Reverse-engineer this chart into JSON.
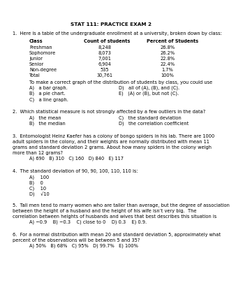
{
  "title": "STAT 111: PRACTICE EXAM 2",
  "background_color": "#ffffff",
  "text_color": "#000000",
  "q1_intro": "1.  Here is a table of the undergraduate enrollment at a university, broken down by class:",
  "table_headers": [
    "Class",
    "Count of students",
    "Percent of Students"
  ],
  "table_rows": [
    [
      "Freshman",
      "8,248",
      "26.8%"
    ],
    [
      "Sophomore",
      "8,073",
      "26.2%"
    ],
    [
      "Junior",
      "7,001",
      "22.8%"
    ],
    [
      "Senior",
      "6,904",
      "22.4%"
    ],
    [
      "Non-degree",
      "535",
      "1.7%"
    ],
    [
      "Total",
      "30,761",
      "100%"
    ]
  ],
  "q1_followup": "To make a correct graph of the distribution of students by class, you could use",
  "q1_left": [
    "A)   a bar graph.",
    "B)   a pie chart.",
    "C)   a line graph."
  ],
  "q1_right": [
    "D)   all of (A), (B), and (C).",
    "E)   (A) or (B), but not (C)."
  ],
  "q2_text": "2.  Which statistical measure is not strongly affected by a few outliers in the data?",
  "q2_left": [
    "A)   the mean",
    "B)   the median"
  ],
  "q2_right": [
    "C)   the standard deviation",
    "D)   the correlation coefficient"
  ],
  "q3_lines": [
    "3.  Entomologist Heinz Kaefer has a colony of bongo spiders in his lab. There are 1000",
    "adult spiders in the colony, and their weights are normally distributed with mean 11",
    "grams and standard deviation 2 grams. About how many spiders in the colony weigh",
    "more than 12 grams?"
  ],
  "q3_choices": "A) 690   B) 310   C) 160   D) 840   E) 117",
  "q4_text": "4.  The standard deviation of 90, 90, 100, 110, 110 is:",
  "q4_choices": [
    "A)    100",
    "B)    0",
    "C)    10",
    "D)    √10"
  ],
  "q5_lines": [
    "5.  Tall men tend to marry women who are taller than average, but the degree of association",
    "between the height of a husband and the height of his wife isn’t very big.  The",
    "correlation between heights of husbands and wives that best describes this situation is"
  ],
  "q5_choices": "A) −0.9    B) −0.3    C) close to 0    D) 0.3    E) 0.9.",
  "q6_lines": [
    "6.  For a normal distribution with mean 20 and standard deviation 5, approximately what",
    "percent of the observations will be between 5 and 35?"
  ],
  "q6_choices": "A) 50%   B) 68%   C) 95%   D) 99.7%   E) 100%"
}
